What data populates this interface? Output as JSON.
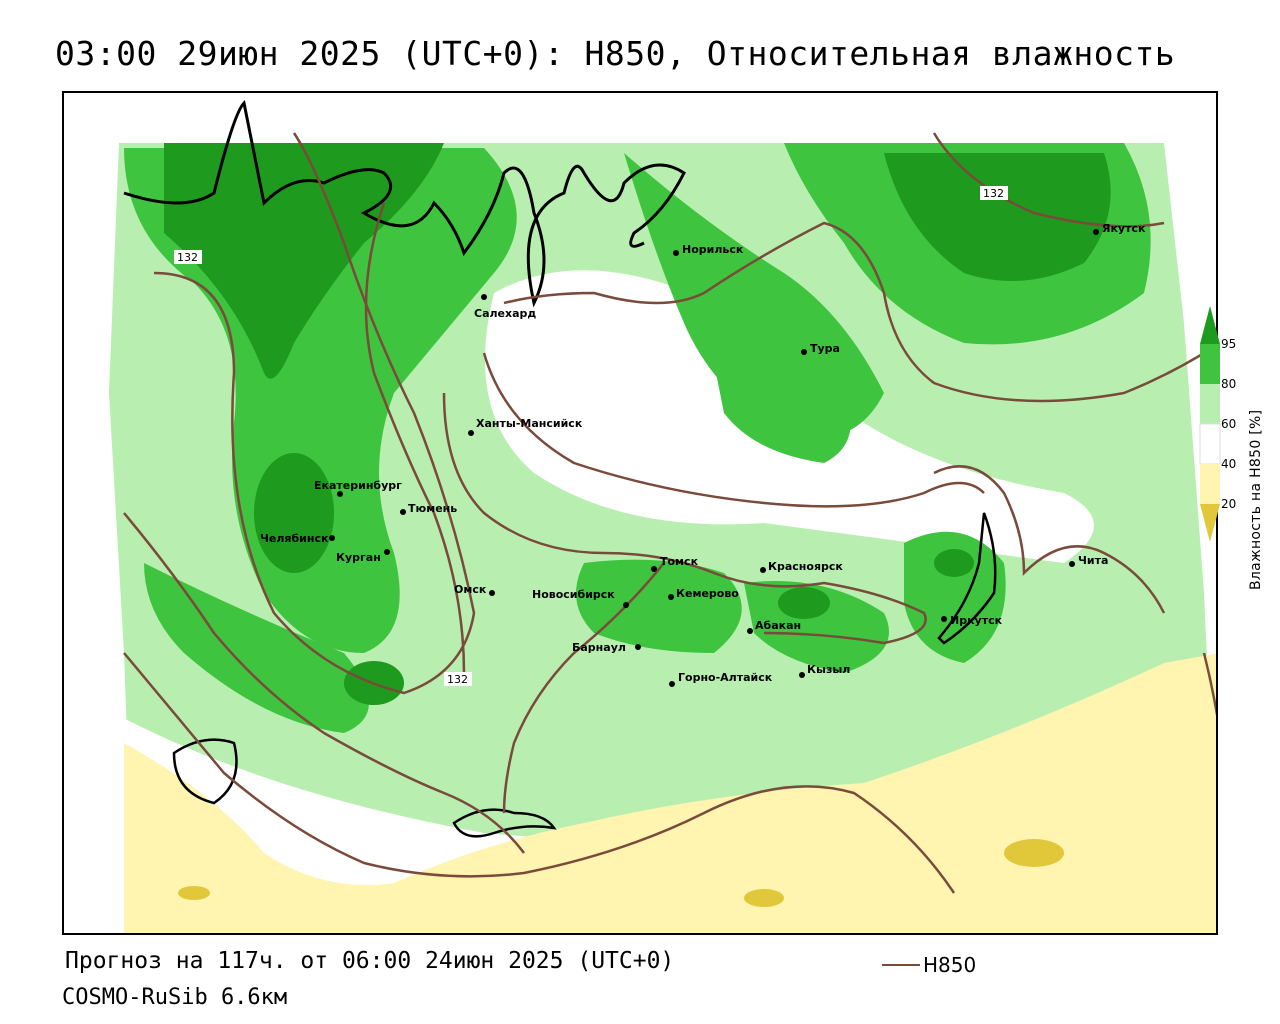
{
  "header": {
    "title": "03:00 29июн 2025 (UTC+0): H850, Относительная влажность"
  },
  "footer": {
    "forecast": "Прогноз на 117ч. от 06:00 24июн 2025 (UTC+0)",
    "model": "COSMO-RuSib 6.6км",
    "legend_line_label": "H850",
    "legend_line_color": "#7a4a3a"
  },
  "colorbar": {
    "title": "Влажность на H850 [%]",
    "ticks": [
      "95",
      "80",
      "60",
      "40",
      "20"
    ],
    "colors": {
      "above_95": "#1e9a1e",
      "80_95": "#3fc43f",
      "60_80": "#b8efb0",
      "40_60": "#ffffff",
      "20_40": "#fff4b0",
      "below_20": "#e0c83a"
    }
  },
  "map": {
    "cities": [
      {
        "name": "Салехард"
      },
      {
        "name": "Норильск"
      },
      {
        "name": "Якутск"
      },
      {
        "name": "Тура"
      },
      {
        "name": "Ханты-Мансийск"
      },
      {
        "name": "Екатеринбург"
      },
      {
        "name": "Тюмень"
      },
      {
        "name": "Челябинск"
      },
      {
        "name": "Курган"
      },
      {
        "name": "Омск"
      },
      {
        "name": "Новосибирск"
      },
      {
        "name": "Томск"
      },
      {
        "name": "Кемерово"
      },
      {
        "name": "Красноярск"
      },
      {
        "name": "Абакан"
      },
      {
        "name": "Барнаул"
      },
      {
        "name": "Горно-Алтайск"
      },
      {
        "name": "Кызыл"
      },
      {
        "name": "Иркутск"
      },
      {
        "name": "Чита"
      }
    ],
    "isoline_labels": [
      "132",
      "132",
      "132"
    ]
  }
}
